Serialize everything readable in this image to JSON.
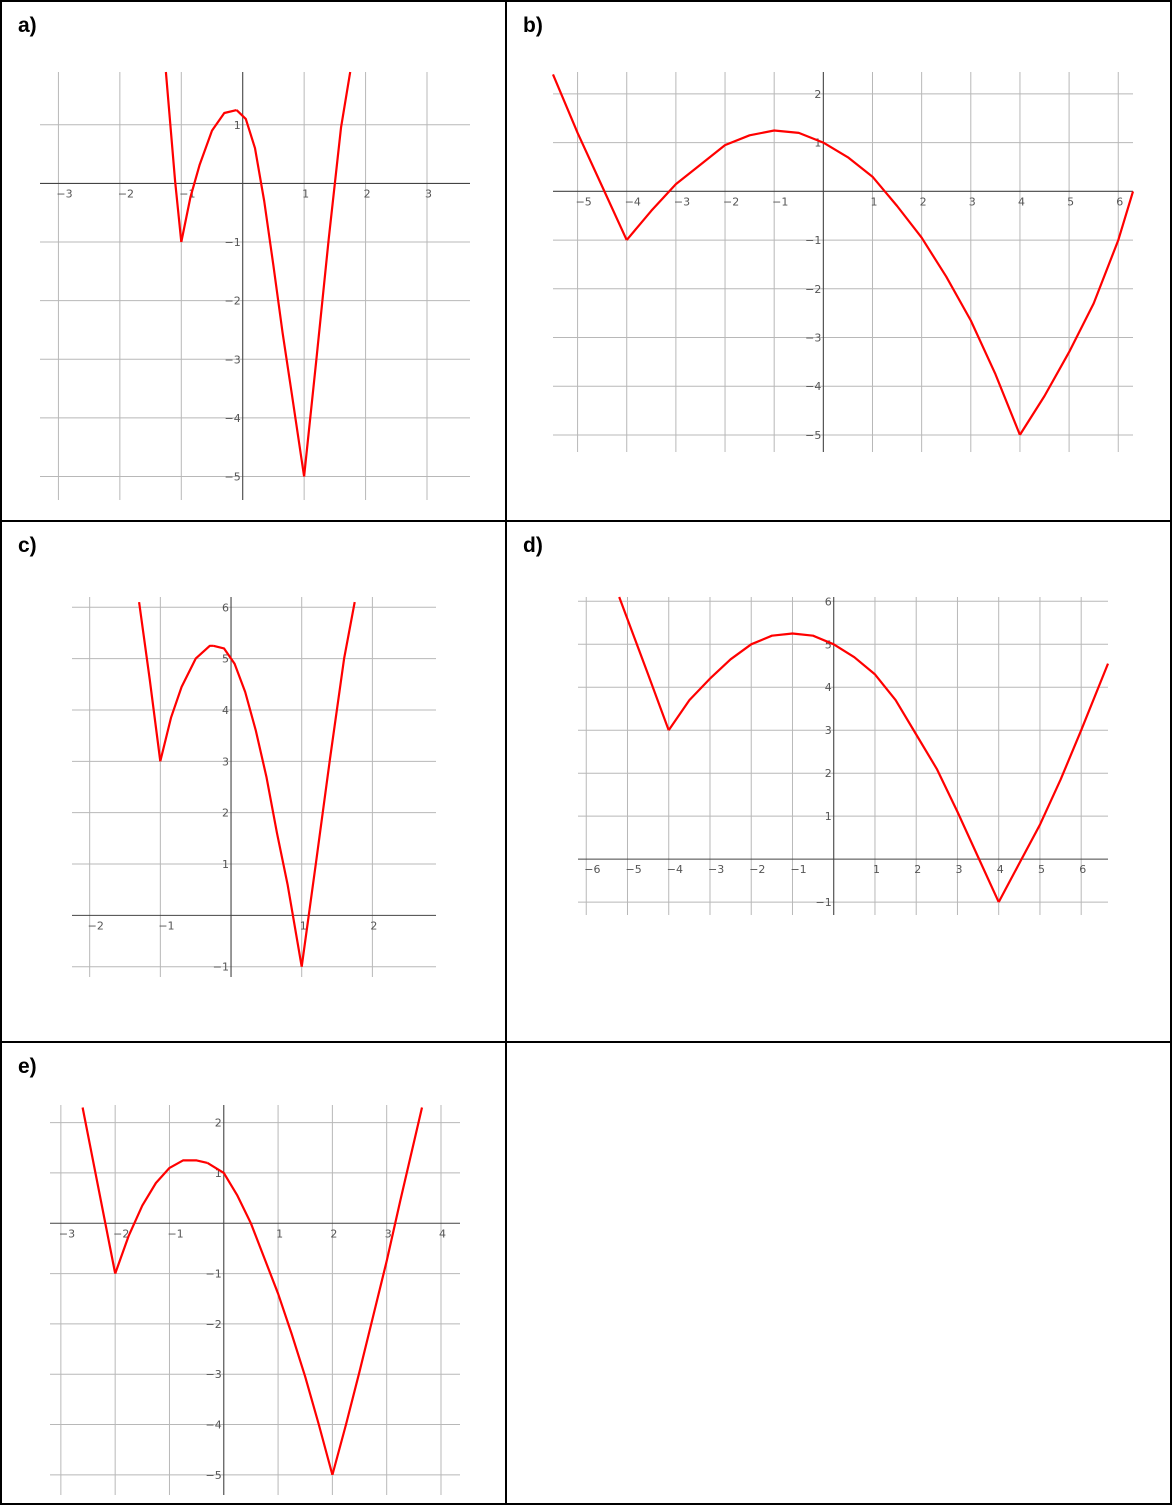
{
  "panels": [
    {
      "label": "a)",
      "chart_data": {
        "type": "line",
        "xlim": [
          -3.3,
          3.7
        ],
        "ylim": [
          -5.4,
          1.9
        ],
        "xticks": [
          -3,
          -2,
          -1,
          1,
          2,
          3
        ],
        "yticks": [
          -5,
          -4,
          -3,
          -2,
          -1,
          1
        ],
        "grid": true,
        "line_color": "#ff0000",
        "series": [
          {
            "x": [
              -1.25,
              -1.1,
              -1.0
            ],
            "y": [
              1.9,
              0.04,
              -1.0
            ]
          },
          {
            "x": [
              -1.0,
              -0.85,
              -0.7,
              -0.5,
              -0.3,
              -0.1
            ],
            "y": [
              -1.0,
              -0.23,
              0.32,
              0.9,
              1.2,
              1.25
            ]
          },
          {
            "x": [
              -0.1,
              0.05,
              0.2,
              0.35,
              0.5,
              0.65,
              0.8,
              0.9,
              1.0
            ],
            "y": [
              1.25,
              1.1,
              0.6,
              -0.3,
              -1.4,
              -2.55,
              -3.6,
              -4.3,
              -5.0
            ]
          },
          {
            "x": [
              1.0,
              1.2,
              1.4,
              1.6,
              1.75
            ],
            "y": [
              -5.0,
              -3.0,
              -0.95,
              0.95,
              1.9
            ]
          }
        ]
      }
    },
    {
      "label": "b)",
      "chart_data": {
        "type": "line",
        "xlim": [
          -5.5,
          6.3
        ],
        "ylim": [
          -5.35,
          2.45
        ],
        "xticks": [
          -5,
          -4,
          -3,
          -2,
          -1,
          1,
          2,
          3,
          4,
          5,
          6
        ],
        "yticks": [
          -5,
          -4,
          -3,
          -2,
          -1,
          1,
          2
        ],
        "grid": true,
        "line_color": "#ff0000",
        "series": [
          {
            "x": [
              -5.5,
              -5.0,
              -4.5,
              -4.0
            ],
            "y": [
              2.4,
              1.2,
              0.1,
              -1.0
            ]
          },
          {
            "x": [
              -4.0,
              -3.5,
              -3.0,
              -2.5,
              -2.0,
              -1.5,
              -1.0,
              -0.5,
              0.0,
              0.5,
              1.0,
              1.5,
              2.0,
              2.5,
              3.0,
              3.5,
              4.0
            ],
            "y": [
              -1.0,
              -0.4,
              0.15,
              0.55,
              0.95,
              1.15,
              1.25,
              1.2,
              1.0,
              0.7,
              0.3,
              -0.3,
              -0.95,
              -1.75,
              -2.65,
              -3.75,
              -5.0
            ]
          },
          {
            "x": [
              4.0,
              4.5,
              5.0,
              5.5,
              6.0,
              6.3
            ],
            "y": [
              -5.0,
              -4.2,
              -3.3,
              -2.3,
              -1.0,
              0.0
            ]
          }
        ]
      }
    },
    {
      "label": "c)",
      "chart_data": {
        "type": "line",
        "xlim": [
          -2.25,
          2.9
        ],
        "ylim": [
          -1.2,
          6.2
        ],
        "xticks": [
          -2,
          -1,
          1,
          2
        ],
        "yticks": [
          -1,
          1,
          2,
          3,
          4,
          5,
          6
        ],
        "grid": true,
        "line_color": "#ff0000",
        "series": [
          {
            "x": [
              -1.3,
              -1.15,
              -1.0
            ],
            "y": [
              6.1,
              4.6,
              3.0
            ]
          },
          {
            "x": [
              -1.0,
              -0.85,
              -0.7,
              -0.5,
              -0.3,
              -0.25
            ],
            "y": [
              3.0,
              3.85,
              4.45,
              5.0,
              5.25,
              5.25
            ]
          },
          {
            "x": [
              -0.25,
              -0.1,
              0.05,
              0.2,
              0.35,
              0.5,
              0.65,
              0.8,
              1.0
            ],
            "y": [
              5.25,
              5.2,
              4.9,
              4.35,
              3.6,
              2.7,
              1.6,
              0.6,
              -1.0
            ]
          },
          {
            "x": [
              1.0,
              1.2,
              1.4,
              1.6,
              1.75
            ],
            "y": [
              -1.0,
              1.0,
              3.05,
              5.0,
              6.1
            ]
          }
        ]
      }
    },
    {
      "label": "d)",
      "chart_data": {
        "type": "line",
        "xlim": [
          -6.2,
          6.65
        ],
        "ylim": [
          -1.3,
          6.1
        ],
        "xticks": [
          -6,
          -5,
          -4,
          -3,
          -2,
          -1,
          1,
          2,
          3,
          4,
          5,
          6
        ],
        "yticks": [
          -1,
          1,
          2,
          3,
          4,
          5,
          6
        ],
        "grid": true,
        "line_color": "#ff0000",
        "series": [
          {
            "x": [
              -5.2,
              -4.5,
              -4.0
            ],
            "y": [
              6.1,
              4.3,
              3.0
            ]
          },
          {
            "x": [
              -4.0,
              -3.5,
              -3.0,
              -2.5,
              -2.0,
              -1.5,
              -1.0,
              -0.5,
              0.0,
              0.5,
              1.0,
              1.5,
              2.0,
              2.5,
              3.0,
              3.5,
              4.0
            ],
            "y": [
              3.0,
              3.7,
              4.2,
              4.65,
              5.0,
              5.2,
              5.25,
              5.2,
              5.0,
              4.7,
              4.3,
              3.7,
              2.9,
              2.1,
              1.1,
              0.05,
              -1.0
            ]
          },
          {
            "x": [
              4.0,
              4.5,
              5.0,
              5.5,
              6.0,
              6.65
            ],
            "y": [
              -1.0,
              -0.1,
              0.8,
              1.85,
              3.0,
              4.55
            ]
          }
        ]
      }
    },
    {
      "label": "e)",
      "chart_data": {
        "type": "line",
        "xlim": [
          -3.2,
          4.35
        ],
        "ylim": [
          -5.4,
          2.35
        ],
        "xticks": [
          -3,
          -2,
          -1,
          1,
          2,
          3,
          4
        ],
        "yticks": [
          -5,
          -4,
          -3,
          -2,
          -1,
          1,
          2
        ],
        "grid": true,
        "line_color": "#ff0000",
        "series": [
          {
            "x": [
              -2.6,
              -2.3,
              -2.0
            ],
            "y": [
              2.3,
              0.65,
              -1.0
            ]
          },
          {
            "x": [
              -2.0,
              -1.75,
              -1.5,
              -1.25,
              -1.0,
              -0.75,
              -0.5,
              -0.3
            ],
            "y": [
              -1.0,
              -0.25,
              0.35,
              0.8,
              1.1,
              1.25,
              1.25,
              1.2
            ]
          },
          {
            "x": [
              -0.3,
              0.0,
              0.25,
              0.5,
              0.75,
              1.0,
              1.25,
              1.5,
              1.75,
              2.0
            ],
            "y": [
              1.2,
              1.0,
              0.55,
              0.0,
              -0.7,
              -1.4,
              -2.2,
              -3.05,
              -4.0,
              -5.0
            ]
          },
          {
            "x": [
              2.0,
              2.25,
              2.5,
              2.75,
              3.0,
              3.25,
              3.5,
              3.65
            ],
            "y": [
              -5.0,
              -4.0,
              -2.95,
              -1.85,
              -0.75,
              0.45,
              1.6,
              2.3
            ]
          }
        ]
      }
    }
  ]
}
